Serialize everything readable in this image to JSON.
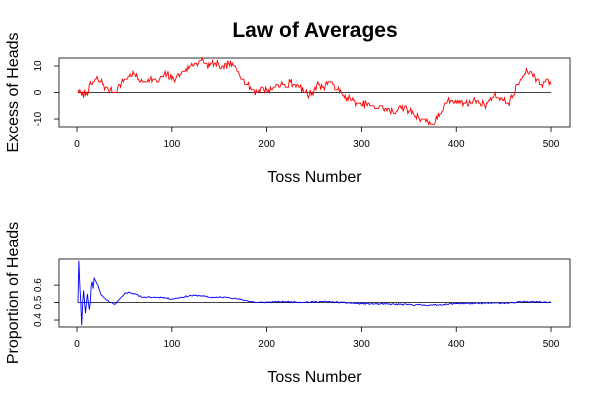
{
  "title": "Law of Averages",
  "chart_data": [
    {
      "type": "line",
      "ylabel": "Excess of Heads",
      "xlabel": "Toss Number",
      "xlim": [
        1,
        500
      ],
      "ylim": [
        -13,
        13
      ],
      "x_ticks": [
        0,
        100,
        200,
        300,
        400,
        500
      ],
      "y_ticks": [
        -10,
        0,
        10
      ],
      "reference_line": 0,
      "color": "#ff0000",
      "n_tosses": 500,
      "keypoints": [
        [
          1,
          1
        ],
        [
          5,
          -1
        ],
        [
          10,
          0
        ],
        [
          15,
          3
        ],
        [
          20,
          5
        ],
        [
          25,
          4
        ],
        [
          30,
          2
        ],
        [
          35,
          1
        ],
        [
          40,
          0
        ],
        [
          45,
          3
        ],
        [
          50,
          5
        ],
        [
          55,
          6
        ],
        [
          60,
          7
        ],
        [
          65,
          5
        ],
        [
          70,
          4
        ],
        [
          75,
          5
        ],
        [
          80,
          5
        ],
        [
          85,
          4
        ],
        [
          90,
          6
        ],
        [
          95,
          7
        ],
        [
          100,
          5
        ],
        [
          105,
          6
        ],
        [
          110,
          7
        ],
        [
          115,
          9
        ],
        [
          120,
          10
        ],
        [
          125,
          11
        ],
        [
          130,
          12
        ],
        [
          135,
          11
        ],
        [
          140,
          10
        ],
        [
          145,
          11
        ],
        [
          150,
          10
        ],
        [
          155,
          9
        ],
        [
          160,
          11
        ],
        [
          165,
          10
        ],
        [
          170,
          8
        ],
        [
          175,
          5
        ],
        [
          180,
          3
        ],
        [
          185,
          1
        ],
        [
          190,
          0
        ],
        [
          195,
          2
        ],
        [
          200,
          1
        ],
        [
          205,
          1
        ],
        [
          210,
          3
        ],
        [
          215,
          3
        ],
        [
          220,
          2
        ],
        [
          225,
          4
        ],
        [
          230,
          3
        ],
        [
          235,
          2
        ],
        [
          240,
          0
        ],
        [
          245,
          -1
        ],
        [
          250,
          1
        ],
        [
          255,
          3
        ],
        [
          260,
          2
        ],
        [
          265,
          4
        ],
        [
          270,
          3
        ],
        [
          275,
          1
        ],
        [
          280,
          -1
        ],
        [
          285,
          -2
        ],
        [
          290,
          -3
        ],
        [
          295,
          -4
        ],
        [
          300,
          -5
        ],
        [
          305,
          -4
        ],
        [
          310,
          -5
        ],
        [
          315,
          -6
        ],
        [
          320,
          -5
        ],
        [
          325,
          -6
        ],
        [
          330,
          -7
        ],
        [
          335,
          -8
        ],
        [
          340,
          -5
        ],
        [
          345,
          -6
        ],
        [
          350,
          -7
        ],
        [
          355,
          -8
        ],
        [
          360,
          -9
        ],
        [
          365,
          -10
        ],
        [
          370,
          -11
        ],
        [
          375,
          -12
        ],
        [
          380,
          -10
        ],
        [
          385,
          -7
        ],
        [
          390,
          -4
        ],
        [
          395,
          -3
        ],
        [
          400,
          -4
        ],
        [
          405,
          -3
        ],
        [
          410,
          -4
        ],
        [
          415,
          -4
        ],
        [
          420,
          -3
        ],
        [
          425,
          -4
        ],
        [
          430,
          -5
        ],
        [
          435,
          -3
        ],
        [
          440,
          -1
        ],
        [
          445,
          -2
        ],
        [
          450,
          -3
        ],
        [
          455,
          -4
        ],
        [
          460,
          -1
        ],
        [
          465,
          3
        ],
        [
          470,
          6
        ],
        [
          475,
          8
        ],
        [
          480,
          7
        ],
        [
          485,
          5
        ],
        [
          490,
          3
        ],
        [
          495,
          5
        ],
        [
          500,
          3
        ]
      ]
    },
    {
      "type": "line",
      "ylabel": "Proportion of Heads",
      "xlabel": "Toss Number",
      "xlim": [
        1,
        500
      ],
      "ylim": [
        0.36,
        0.75
      ],
      "x_ticks": [
        0,
        100,
        200,
        300,
        400,
        500
      ],
      "y_ticks": [
        0.4,
        0.5,
        0.6
      ],
      "y_tick_labels": [
        "0.4",
        "0.5",
        "0.6"
      ],
      "reference_line": 0.5,
      "color": "#0000ff",
      "n_tosses": 500,
      "keypoints": [
        [
          1,
          0.5
        ],
        [
          2,
          0.74
        ],
        [
          3,
          0.6
        ],
        [
          4,
          0.5
        ],
        [
          5,
          0.37
        ],
        [
          6,
          0.5
        ],
        [
          7,
          0.57
        ],
        [
          8,
          0.5
        ],
        [
          9,
          0.44
        ],
        [
          10,
          0.5
        ],
        [
          11,
          0.55
        ],
        [
          12,
          0.5
        ],
        [
          13,
          0.46
        ],
        [
          14,
          0.5
        ],
        [
          15,
          0.6
        ],
        [
          16,
          0.62
        ],
        [
          17,
          0.58
        ],
        [
          18,
          0.64
        ],
        [
          19,
          0.63
        ],
        [
          20,
          0.62
        ],
        [
          22,
          0.6
        ],
        [
          25,
          0.55
        ],
        [
          28,
          0.53
        ],
        [
          30,
          0.52
        ],
        [
          33,
          0.51
        ],
        [
          36,
          0.5
        ],
        [
          40,
          0.49
        ],
        [
          45,
          0.52
        ],
        [
          50,
          0.55
        ],
        [
          55,
          0.56
        ],
        [
          60,
          0.55
        ],
        [
          70,
          0.53
        ],
        [
          80,
          0.53
        ],
        [
          90,
          0.53
        ],
        [
          100,
          0.52
        ],
        [
          110,
          0.53
        ],
        [
          120,
          0.54
        ],
        [
          130,
          0.54
        ],
        [
          140,
          0.53
        ],
        [
          150,
          0.53
        ],
        [
          160,
          0.53
        ],
        [
          170,
          0.52
        ],
        [
          180,
          0.51
        ],
        [
          190,
          0.5
        ],
        [
          200,
          0.502
        ],
        [
          220,
          0.505
        ],
        [
          240,
          0.502
        ],
        [
          260,
          0.506
        ],
        [
          280,
          0.5
        ],
        [
          300,
          0.494
        ],
        [
          320,
          0.492
        ],
        [
          340,
          0.49
        ],
        [
          360,
          0.487
        ],
        [
          375,
          0.485
        ],
        [
          380,
          0.487
        ],
        [
          390,
          0.49
        ],
        [
          400,
          0.495
        ],
        [
          420,
          0.495
        ],
        [
          440,
          0.497
        ],
        [
          460,
          0.498
        ],
        [
          470,
          0.505
        ],
        [
          480,
          0.507
        ],
        [
          490,
          0.503
        ],
        [
          500,
          0.503
        ]
      ]
    }
  ]
}
